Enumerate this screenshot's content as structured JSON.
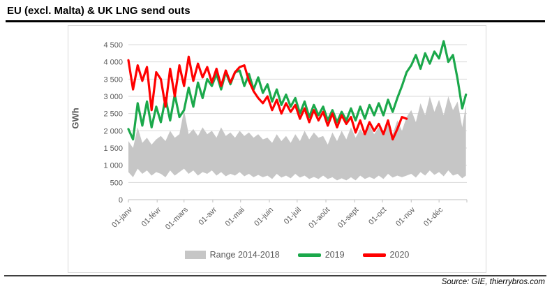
{
  "page": {
    "title": "EU (excl. Malta) & UK LNG send outs",
    "source": "Source: GIE, thierrybros.com"
  },
  "legend": {
    "items": [
      {
        "label": "Range 2014-2018"
      },
      {
        "label": "2019"
      },
      {
        "label": "2020"
      }
    ]
  },
  "chart_data": {
    "type": "line",
    "title": "EU (excl. Malta) & UK LNG send outs",
    "xlabel": "",
    "ylabel": "GWh",
    "ylim": [
      0,
      4500
    ],
    "grid": true,
    "legend_position": "bottom",
    "x_unit": "day-of-year",
    "y_ticks": {
      "values": [
        0,
        500,
        1000,
        1500,
        2000,
        2500,
        3000,
        3500,
        4000,
        4500
      ],
      "labels": [
        "0",
        "500",
        "1 000",
        "1 500",
        "2 000",
        "2 500",
        "3 000",
        "3 500",
        "4 000",
        "4 500"
      ]
    },
    "x_ticks": {
      "days": [
        1,
        32,
        61,
        92,
        122,
        153,
        183,
        214,
        245,
        275,
        306,
        336
      ],
      "labels": [
        "01-janv",
        "01-févr",
        "01-mars",
        "01-avr",
        "01-mai",
        "01-juin",
        "01-juil",
        "01-août",
        "01-sept",
        "01-oct",
        "01-nov",
        "01-déc"
      ]
    },
    "days": [
      1,
      6,
      11,
      16,
      21,
      26,
      31,
      36,
      41,
      46,
      51,
      56,
      61,
      66,
      71,
      76,
      81,
      86,
      91,
      96,
      101,
      106,
      111,
      116,
      121,
      126,
      131,
      136,
      141,
      146,
      151,
      156,
      161,
      166,
      171,
      176,
      181,
      186,
      191,
      196,
      201,
      206,
      211,
      216,
      221,
      226,
      231,
      236,
      241,
      246,
      251,
      256,
      261,
      266,
      271,
      276,
      281,
      286,
      291,
      296,
      301,
      306,
      311,
      316,
      321,
      326,
      331,
      336,
      341,
      346,
      351,
      356,
      361,
      365
    ],
    "series": [
      {
        "name": "Range 2014-2018",
        "type": "band",
        "color": "#c6c6c6",
        "max": [
          1700,
          1500,
          2100,
          1650,
          1800,
          1600,
          1750,
          1850,
          1700,
          2000,
          1800,
          1900,
          2600,
          1900,
          2050,
          1850,
          2100,
          1900,
          2000,
          1800,
          2100,
          1850,
          1950,
          1800,
          2000,
          1850,
          1950,
          1800,
          1900,
          1750,
          1800,
          1650,
          1900,
          1700,
          1850,
          1650,
          1900,
          1700,
          2000,
          1750,
          1950,
          1800,
          1850,
          1600,
          1950,
          1700,
          2000,
          1750,
          2100,
          1800,
          2050,
          1850,
          2150,
          1900,
          2100,
          1850,
          2200,
          1900,
          2300,
          2000,
          2400,
          2600,
          2250,
          2800,
          2450,
          3000,
          2550,
          2900,
          2450,
          3000,
          2600,
          2850,
          2100,
          2750
        ],
        "min": [
          800,
          650,
          900,
          750,
          850,
          700,
          800,
          750,
          650,
          850,
          700,
          800,
          900,
          750,
          850,
          700,
          800,
          750,
          850,
          700,
          800,
          680,
          750,
          700,
          800,
          680,
          750,
          650,
          720,
          650,
          700,
          600,
          750,
          640,
          700,
          620,
          750,
          640,
          700,
          600,
          660,
          600,
          700,
          600,
          650,
          560,
          620,
          560,
          650,
          560,
          700,
          600,
          660,
          600,
          700,
          600,
          750,
          640,
          700,
          650,
          700,
          750,
          640,
          800,
          700,
          850,
          720,
          800,
          680,
          850,
          700,
          750,
          620,
          700
        ]
      },
      {
        "name": "2019",
        "type": "line",
        "color": "#1ba84b",
        "values": [
          2050,
          1750,
          2800,
          2150,
          2850,
          2100,
          2700,
          2250,
          2950,
          2300,
          3050,
          2400,
          2600,
          3250,
          2700,
          3400,
          2950,
          3500,
          3300,
          3650,
          3200,
          3700,
          3350,
          3700,
          3750,
          3300,
          3650,
          3200,
          3550,
          3100,
          3350,
          2850,
          3200,
          2750,
          3050,
          2700,
          2950,
          2500,
          2850,
          2400,
          2750,
          2450,
          2700,
          2300,
          2600,
          2250,
          2550,
          2300,
          2650,
          2300,
          2700,
          2350,
          2750,
          2450,
          2800,
          2450,
          2900,
          2550,
          2950,
          3300,
          3700,
          3900,
          4200,
          3800,
          4250,
          3950,
          4300,
          4100,
          4600,
          4000,
          4200,
          3500,
          2650,
          3050
        ]
      },
      {
        "name": "2020",
        "type": "line",
        "color": "#ff0000",
        "values": [
          4050,
          3200,
          3900,
          3450,
          3850,
          2600,
          3700,
          3500,
          2700,
          3800,
          3000,
          3900,
          3300,
          4150,
          3450,
          3950,
          3550,
          3850,
          3400,
          3800,
          3300,
          3750,
          3400,
          3700,
          3850,
          3900,
          3450,
          3150,
          2950,
          2800,
          3000,
          2600,
          2900,
          2500,
          2800,
          2550,
          2750,
          2350,
          2650,
          2250,
          2600,
          2300,
          2550,
          2150,
          2500,
          2100,
          2450,
          2200,
          2400,
          1950,
          2300,
          1900,
          2250,
          2000,
          2200,
          1900,
          2300,
          1750,
          2050,
          2400,
          2350
        ]
      }
    ],
    "colors": {
      "grid": "#d9d9d9",
      "axis": "#bfbfbf",
      "text": "#595959",
      "title_rule": "#000000",
      "bottom_rule": "#3f3f3f"
    }
  }
}
